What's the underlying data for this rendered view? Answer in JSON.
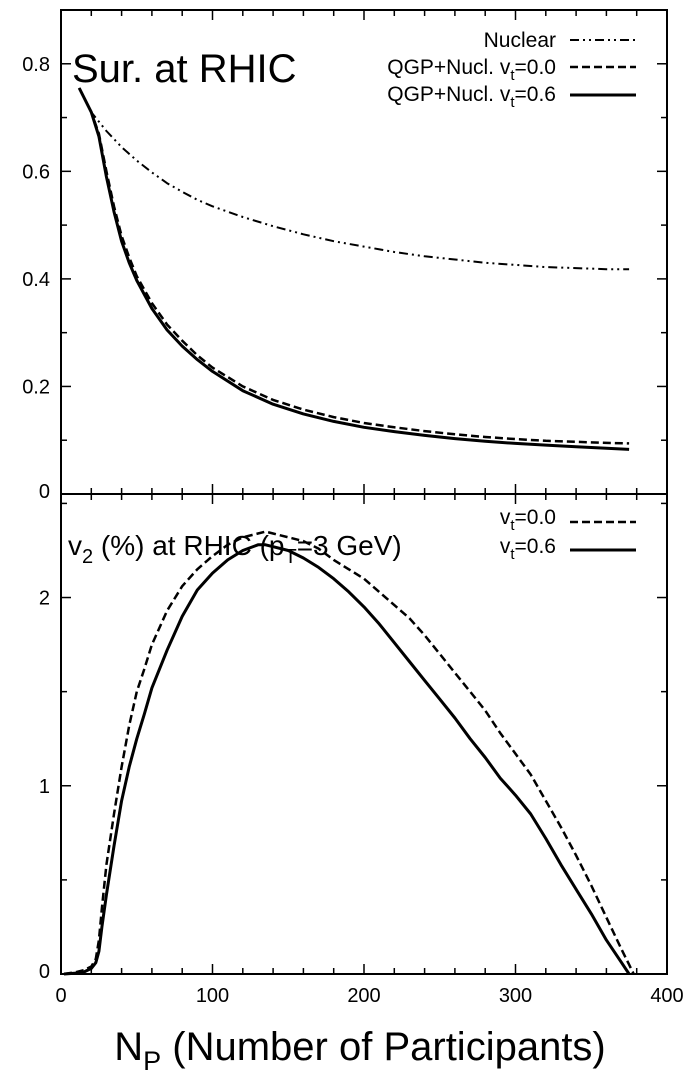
{
  "chart_data": [
    {
      "type": "line",
      "title": "Sur. at RHIC",
      "xlabel": "",
      "ylabel": "",
      "xlim": [
        0,
        400
      ],
      "ylim": [
        0,
        0.9
      ],
      "y_ticks": [
        "0",
        "0.2",
        "0.4",
        "0.6",
        "0.8"
      ],
      "legend_position": "top-right",
      "series": [
        {
          "name": "Nuclear",
          "style": "dash-dot",
          "x": [
            12,
            20,
            30,
            40,
            50,
            60,
            70,
            80,
            90,
            100,
            120,
            140,
            160,
            180,
            200,
            220,
            240,
            260,
            280,
            300,
            320,
            340,
            360,
            375
          ],
          "y": [
            0.755,
            0.71,
            0.675,
            0.645,
            0.62,
            0.598,
            0.578,
            0.562,
            0.547,
            0.535,
            0.515,
            0.498,
            0.483,
            0.47,
            0.46,
            0.45,
            0.442,
            0.436,
            0.43,
            0.426,
            0.422,
            0.42,
            0.418,
            0.418
          ]
        },
        {
          "name": "QGP+Nucl. v_t=0.0",
          "style": "dashed",
          "x": [
            12,
            20,
            25,
            30,
            35,
            40,
            45,
            50,
            60,
            70,
            80,
            90,
            100,
            120,
            140,
            160,
            180,
            200,
            220,
            240,
            260,
            280,
            300,
            320,
            340,
            360,
            375
          ],
          "y": [
            0.755,
            0.71,
            0.67,
            0.6,
            0.535,
            0.48,
            0.44,
            0.405,
            0.355,
            0.315,
            0.285,
            0.258,
            0.235,
            0.2,
            0.175,
            0.157,
            0.143,
            0.132,
            0.124,
            0.117,
            0.111,
            0.106,
            0.102,
            0.099,
            0.097,
            0.095,
            0.094
          ]
        },
        {
          "name": "QGP+Nucl. v_t=0.6",
          "style": "solid",
          "x": [
            12,
            20,
            25,
            30,
            35,
            40,
            45,
            50,
            60,
            70,
            80,
            90,
            100,
            120,
            140,
            160,
            180,
            200,
            220,
            240,
            260,
            280,
            300,
            320,
            340,
            360,
            375
          ],
          "y": [
            0.755,
            0.71,
            0.665,
            0.59,
            0.525,
            0.47,
            0.43,
            0.397,
            0.345,
            0.305,
            0.275,
            0.25,
            0.228,
            0.192,
            0.167,
            0.149,
            0.135,
            0.124,
            0.116,
            0.109,
            0.103,
            0.098,
            0.094,
            0.091,
            0.088,
            0.085,
            0.083
          ]
        }
      ]
    },
    {
      "type": "line",
      "title_parts": [
        "v",
        "2",
        " (%) at RHIC (p",
        "T",
        "=3 GeV)"
      ],
      "xlabel_parts": [
        "N",
        "P",
        " (Number of Participants)"
      ],
      "ylabel": "",
      "xlim": [
        0,
        400
      ],
      "ylim": [
        0,
        2.55
      ],
      "y_ticks": [
        "0",
        "1",
        "2"
      ],
      "x_ticks": [
        "0",
        "100",
        "200",
        "300",
        "400"
      ],
      "legend_position": "top-right",
      "series": [
        {
          "name": "v_t=0.0",
          "style": "dashed",
          "x": [
            2,
            10,
            15,
            20,
            23,
            25,
            27,
            30,
            35,
            40,
            45,
            50,
            55,
            60,
            70,
            80,
            90,
            100,
            110,
            120,
            130,
            135,
            140,
            150,
            160,
            170,
            180,
            190,
            200,
            210,
            220,
            230,
            240,
            250,
            260,
            270,
            280,
            290,
            300,
            310,
            320,
            330,
            340,
            350,
            360,
            370,
            375,
            378
          ],
          "y": [
            0.0,
            0.01,
            0.02,
            0.04,
            0.08,
            0.18,
            0.35,
            0.58,
            0.85,
            1.1,
            1.32,
            1.5,
            1.62,
            1.75,
            1.93,
            2.06,
            2.15,
            2.22,
            2.28,
            2.32,
            2.34,
            2.35,
            2.34,
            2.32,
            2.3,
            2.26,
            2.2,
            2.15,
            2.1,
            2.03,
            1.96,
            1.89,
            1.8,
            1.7,
            1.6,
            1.5,
            1.4,
            1.28,
            1.17,
            1.06,
            0.92,
            0.78,
            0.63,
            0.47,
            0.3,
            0.13,
            0.05,
            0.0
          ]
        },
        {
          "name": "v_t=0.6",
          "style": "solid",
          "x": [
            2,
            10,
            15,
            20,
            23,
            25,
            27,
            30,
            35,
            40,
            45,
            50,
            55,
            60,
            70,
            80,
            90,
            100,
            110,
            120,
            130,
            135,
            140,
            150,
            160,
            170,
            180,
            190,
            200,
            210,
            220,
            230,
            240,
            250,
            260,
            270,
            280,
            290,
            300,
            310,
            320,
            330,
            340,
            350,
            360,
            370,
            375
          ],
          "y": [
            0.0,
            0.005,
            0.01,
            0.03,
            0.06,
            0.12,
            0.25,
            0.42,
            0.68,
            0.92,
            1.1,
            1.25,
            1.38,
            1.52,
            1.72,
            1.9,
            2.04,
            2.13,
            2.2,
            2.25,
            2.28,
            2.28,
            2.27,
            2.25,
            2.21,
            2.16,
            2.1,
            2.03,
            1.95,
            1.86,
            1.76,
            1.66,
            1.56,
            1.46,
            1.36,
            1.25,
            1.15,
            1.04,
            0.95,
            0.85,
            0.72,
            0.58,
            0.45,
            0.32,
            0.18,
            0.06,
            0.0
          ]
        }
      ]
    }
  ],
  "legends": {
    "top": [
      {
        "base": "Nuclear",
        "sub": "",
        "tail": ""
      },
      {
        "base": "QGP+Nucl. v",
        "sub": "t",
        "tail": "=0.0"
      },
      {
        "base": "QGP+Nucl. v",
        "sub": "t",
        "tail": "=0.6"
      }
    ],
    "bottom": [
      {
        "base": "v",
        "sub": "t",
        "tail": "=0.0"
      },
      {
        "base": "v",
        "sub": "t",
        "tail": "=0.6"
      }
    ]
  },
  "colors": {
    "line": "#000000",
    "background": "#ffffff"
  }
}
